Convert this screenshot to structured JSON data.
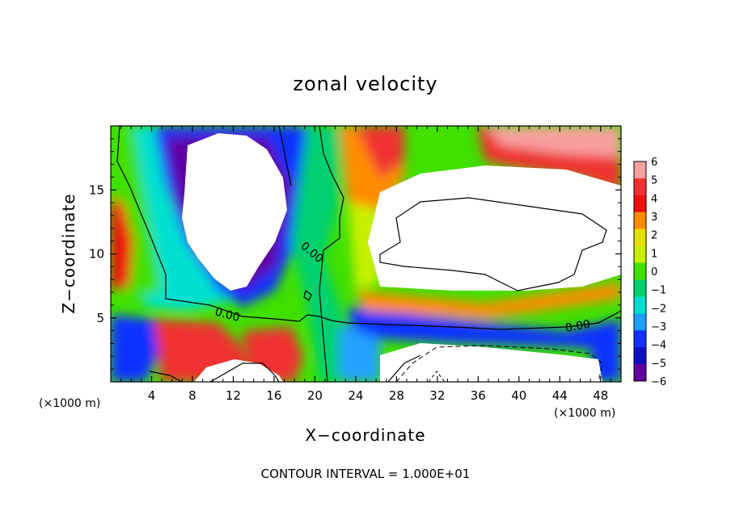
{
  "chart_data": {
    "type": "heatmap",
    "title": "zonal velocity",
    "xlabel": "X−coordinate",
    "ylabel": "Z−coordinate",
    "x_unit_left": "(×1000 m)",
    "x_unit_right": "(×1000 m)",
    "xlim": [
      0,
      50
    ],
    "ylim": [
      0,
      20
    ],
    "x_ticks": [
      4,
      8,
      12,
      16,
      20,
      24,
      28,
      32,
      36,
      40,
      44,
      48
    ],
    "x_tick_labels": [
      "4",
      "8",
      "12",
      "16",
      "20",
      "24",
      "28",
      "32",
      "36",
      "40",
      "44",
      "48"
    ],
    "y_ticks": [
      5,
      10,
      15
    ],
    "y_tick_labels": [
      "5",
      "10",
      "15"
    ],
    "colorbar": {
      "levels": [
        6,
        5,
        4,
        3,
        2,
        1,
        0,
        -1,
        -2,
        -3,
        -4,
        -5,
        -6
      ],
      "labels": [
        "6",
        "5",
        "4",
        "3",
        "2",
        "1",
        "0",
        "−1",
        "−2",
        "−3",
        "−4",
        "−5",
        "−6"
      ],
      "colors": [
        "#f7a0a0",
        "#f03030",
        "#ee1010",
        "#ff8c00",
        "#e8e000",
        "#c8f000",
        "#40e000",
        "#00d070",
        "#00e0d0",
        "#20a0ff",
        "#1030ff",
        "#1010c0",
        "#6000a0"
      ]
    },
    "contour_interval_text": "CONTOUR INTERVAL = 1.000E+01",
    "contour_labels": [
      "0.00",
      "0.00",
      "0.00"
    ],
    "field_regions": [
      {
        "name": "left-low",
        "x": [
          0,
          4
        ],
        "y": [
          0,
          5
        ],
        "value": -4
      },
      {
        "name": "left-mid",
        "x": [
          0,
          2
        ],
        "y": [
          8,
          14
        ],
        "value": 4
      },
      {
        "name": "left-band",
        "x": [
          1,
          8
        ],
        "y": [
          3,
          20
        ],
        "value": -1
      },
      {
        "name": "upper-blue-arc",
        "x": [
          5,
          20
        ],
        "y": [
          10,
          20
        ],
        "value": -5
      },
      {
        "name": "top-white-blob",
        "x": [
          7,
          18
        ],
        "y": [
          8,
          20
        ],
        "value": -7
      },
      {
        "name": "red-lower-left",
        "x": [
          4,
          14
        ],
        "y": [
          0,
          5
        ],
        "value": 5
      },
      {
        "name": "central-green",
        "x": [
          16,
          24
        ],
        "y": [
          0,
          20
        ],
        "value": 0
      },
      {
        "name": "orange-column",
        "x": [
          24,
          29
        ],
        "y": [
          12,
          20
        ],
        "value": 4
      },
      {
        "name": "right-white",
        "x": [
          28,
          50
        ],
        "y": [
          6,
          18
        ],
        "value": 7
      },
      {
        "name": "upper-right-red",
        "x": [
          36,
          50
        ],
        "y": [
          15,
          20
        ],
        "value": 5
      },
      {
        "name": "blue-band",
        "x": [
          24,
          50
        ],
        "y": [
          3,
          5
        ],
        "value": -4
      },
      {
        "name": "lower-right-white",
        "x": [
          26,
          48
        ],
        "y": [
          0,
          3
        ],
        "value": 7
      }
    ]
  }
}
